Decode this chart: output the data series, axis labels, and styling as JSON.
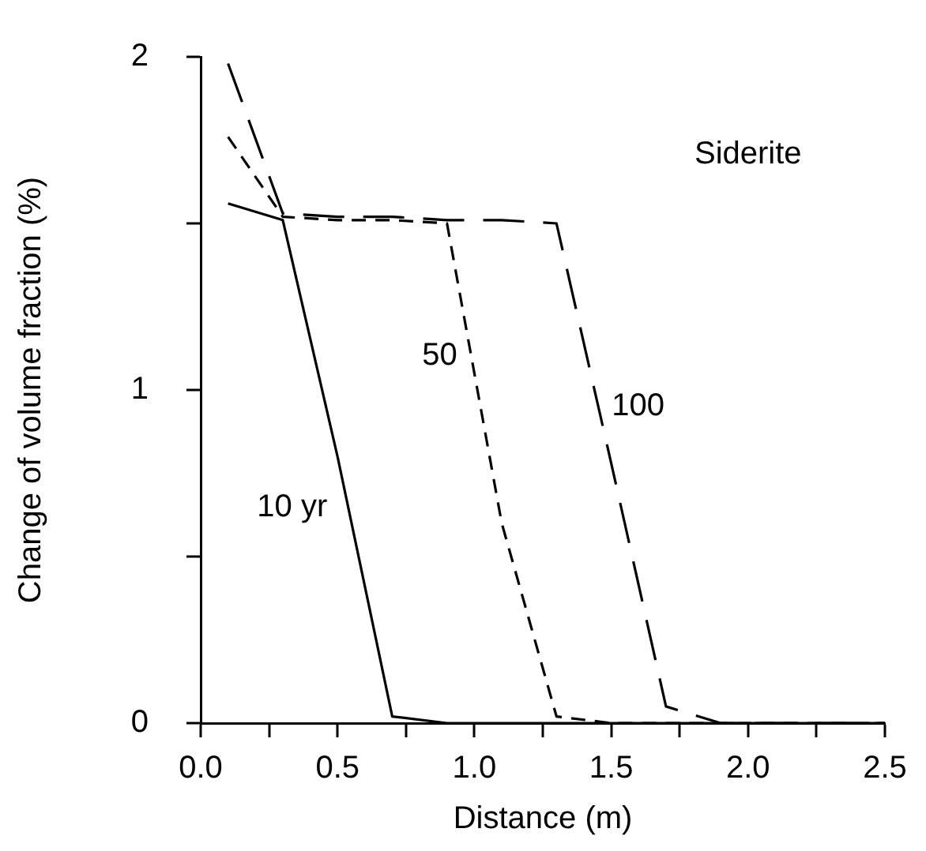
{
  "chart_data": {
    "type": "line",
    "xlabel": "Distance (m)",
    "ylabel": "Change of volume fraction (%)",
    "annotations": [
      "Siderite"
    ],
    "xlim": [
      0,
      2.5
    ],
    "ylim": [
      0,
      2
    ],
    "xticks": [
      {
        "value": 0,
        "label": "0.0"
      },
      {
        "value": 0.25,
        "label": null
      },
      {
        "value": 0.5,
        "label": "0.5"
      },
      {
        "value": 0.75,
        "label": null
      },
      {
        "value": 1,
        "label": "1.0"
      },
      {
        "value": 1.25,
        "label": null
      },
      {
        "value": 1.5,
        "label": "1.5"
      },
      {
        "value": 1.75,
        "label": null
      },
      {
        "value": 2,
        "label": "2.0"
      },
      {
        "value": 2.25,
        "label": null
      },
      {
        "value": 2.5,
        "label": "2.5"
      }
    ],
    "yticks": [
      0,
      {
        "value": 0.5,
        "label": null
      },
      1,
      {
        "value": 1.5,
        "label": null
      },
      2
    ],
    "grid": false,
    "legend": false,
    "marker": "none",
    "x": [
      0.1,
      0.3,
      0.5,
      0.7,
      0.9,
      1.1,
      1.3,
      1.5,
      1.7,
      1.9,
      2.1,
      2.3,
      2.5
    ],
    "series": [
      {
        "name": "10 yr",
        "color": "#000000",
        "line_style": "solid",
        "values": [
          1.56,
          1.51,
          0.8,
          0.02,
          0,
          0,
          0,
          0,
          0,
          0,
          0,
          0,
          0
        ]
      },
      {
        "name": "50",
        "color": "#000000",
        "line_style": "dashed",
        "values": [
          1.76,
          1.52,
          1.51,
          1.51,
          1.5,
          0.6,
          0.02,
          0,
          0,
          0,
          0,
          0,
          0
        ]
      },
      {
        "name": "100",
        "color": "#000000",
        "line_style": "dashed",
        "values": [
          1.98,
          1.53,
          1.52,
          1.52,
          1.51,
          1.51,
          1.5,
          0.78,
          0.05,
          0,
          0,
          0,
          0
        ]
      }
    ]
  }
}
